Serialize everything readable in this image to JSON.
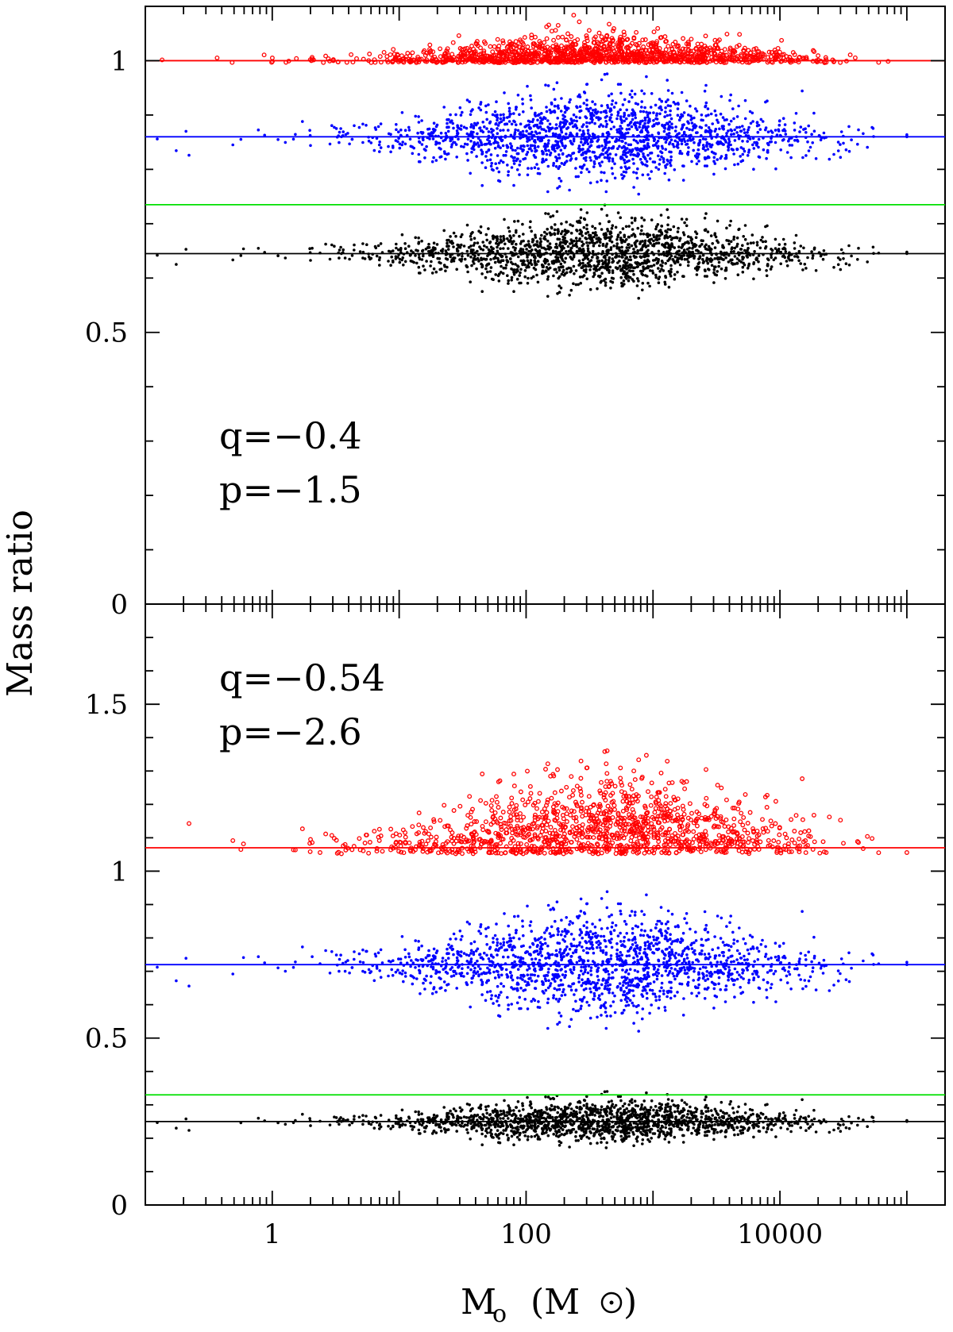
{
  "chart_data": [
    {
      "type": "scatter",
      "panel": "top",
      "annotations": [
        "q=−0.4",
        "p=−1.5"
      ],
      "ylim": [
        0,
        1.1
      ],
      "yticks_major": [
        0,
        0.5,
        1
      ],
      "ytick_labels": [
        "0",
        "0.5",
        "1"
      ],
      "xscale": "log",
      "xlim": [
        0.1,
        200000
      ],
      "series": [
        {
          "color": "#ff0000",
          "marker": "open-circle",
          "center": 1.0,
          "spread": 0.025,
          "skew": "above",
          "ref_line": 1.0
        },
        {
          "color": "#0000ff",
          "marker": "dot",
          "center": 0.86,
          "spread": 0.045,
          "ref_line": 0.86
        },
        {
          "color": "#000000",
          "marker": "dot",
          "center": 0.645,
          "spread": 0.035,
          "ref_line": 0.645
        }
      ],
      "extra_lines": [
        {
          "color": "#00e000",
          "y": 0.735
        }
      ],
      "x_range_of_points": [
        0.12,
        100000
      ]
    },
    {
      "type": "scatter",
      "panel": "bottom",
      "annotations": [
        "q=−0.54",
        "p=−2.6"
      ],
      "ylim": [
        0,
        1.8
      ],
      "yticks_major": [
        0,
        0.5,
        1,
        1.5
      ],
      "ytick_labels": [
        "0",
        "0.5",
        "1",
        "1.5"
      ],
      "xscale": "log",
      "xlim": [
        0.1,
        200000
      ],
      "series": [
        {
          "color": "#ff0000",
          "marker": "open-circle",
          "center": 1.07,
          "spread": 0.12,
          "skew": "above",
          "ref_line": 1.07
        },
        {
          "color": "#0000ff",
          "marker": "dot",
          "center": 0.72,
          "spread": 0.085,
          "ref_line": 0.72
        },
        {
          "color": "#000000",
          "marker": "dot",
          "center": 0.25,
          "spread": 0.035,
          "ref_line": 0.25
        }
      ],
      "extra_lines": [
        {
          "color": "#00e000",
          "y": 0.33
        }
      ],
      "x_range_of_points": [
        0.12,
        100000
      ]
    }
  ],
  "axes": {
    "xlabel": "M",
    "xlabel_sub": "o",
    "xlabel_units": "(M",
    "xlabel_units_close": ")",
    "ylabel": "Mass ratio",
    "xtick_labels": [
      "1",
      "100",
      "10000"
    ],
    "xtick_values": [
      1,
      100,
      10000
    ]
  },
  "colors": {
    "red": "#ff0000",
    "blue": "#0000ff",
    "black": "#000000",
    "green": "#00e000"
  }
}
